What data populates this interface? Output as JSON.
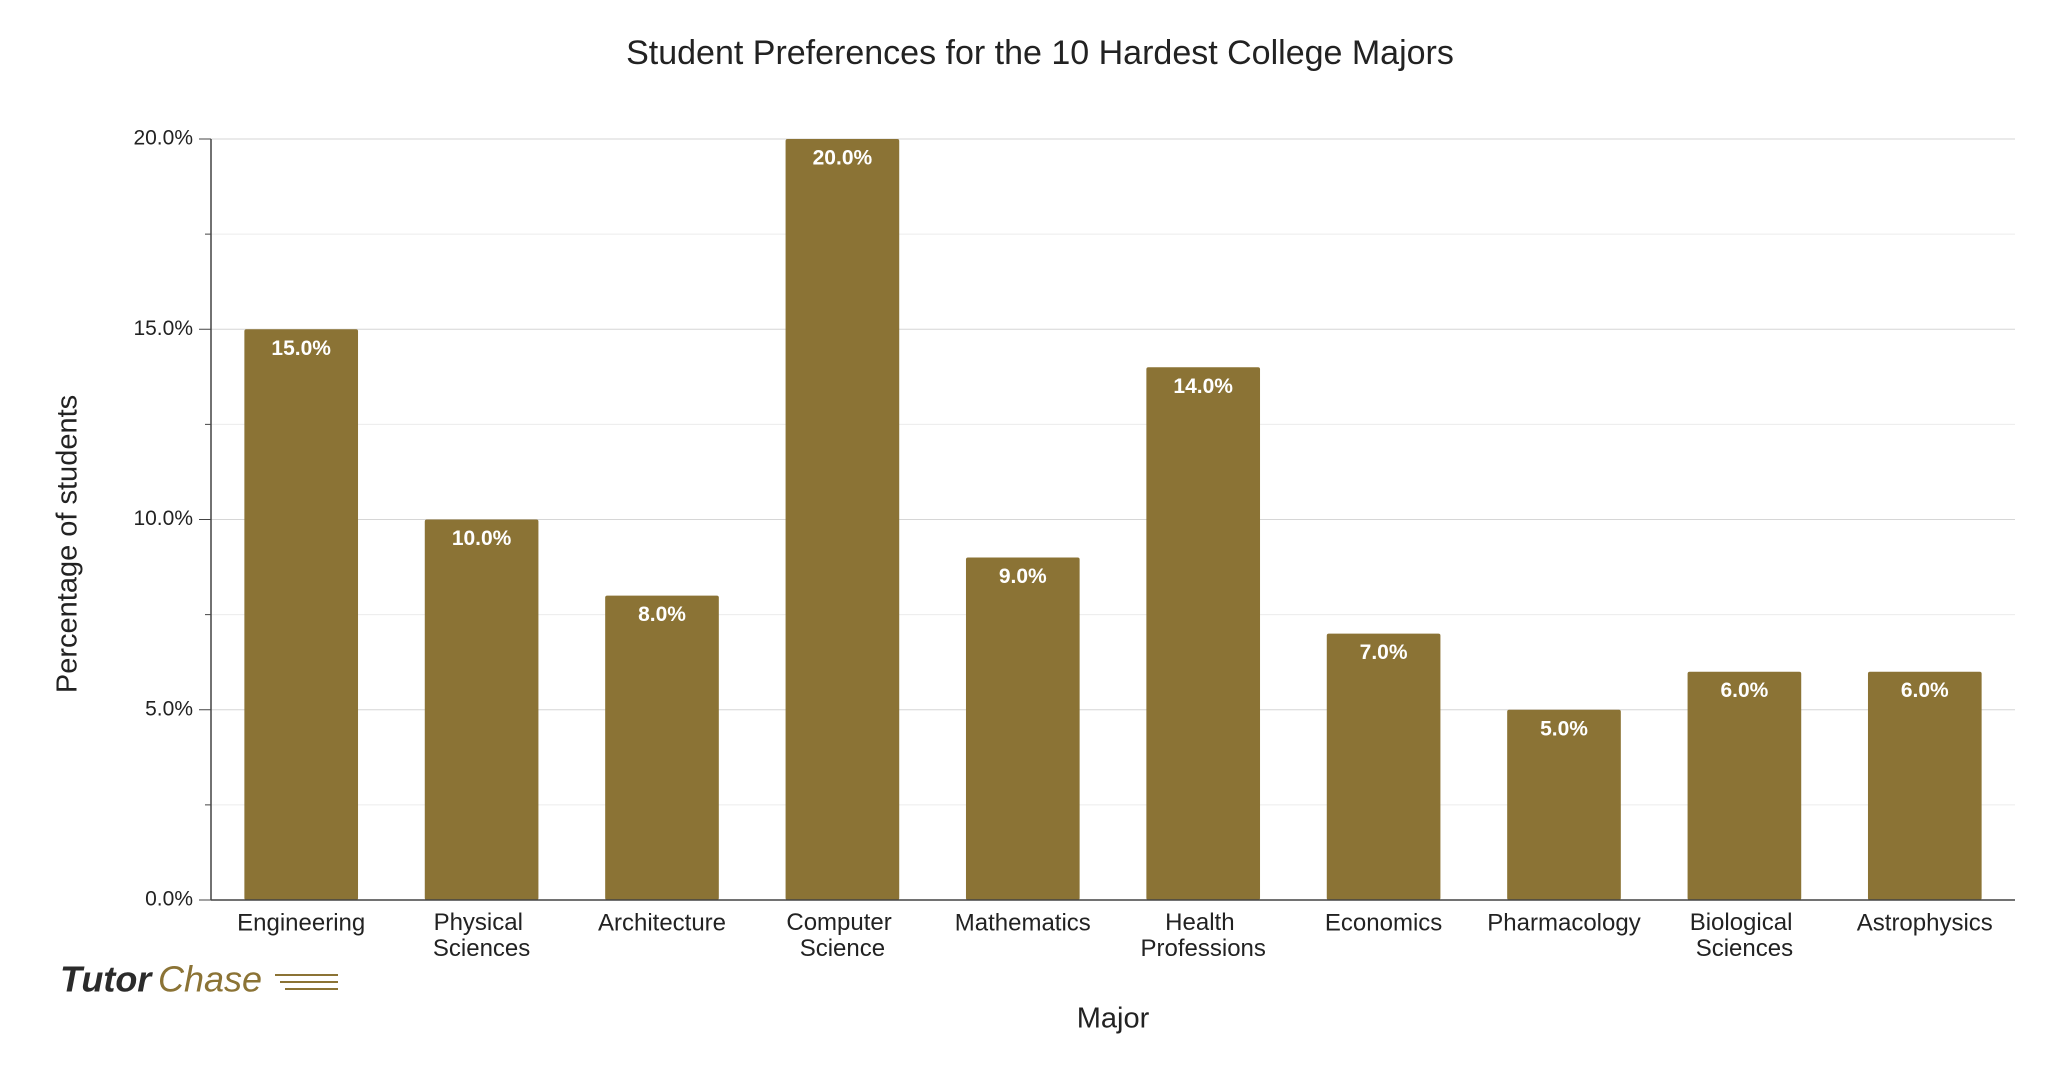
{
  "chart_data": {
    "type": "bar",
    "title": "Student Preferences for the 10 Hardest College Majors",
    "x_label": "Major",
    "y_label": "Percentage of students",
    "categories": [
      "Engineering",
      "Physical Sciences",
      "Architecture",
      "Computer Science",
      "Mathematics",
      "Health Professions",
      "Economics",
      "Pharmacology",
      "Biological Sciences",
      "Astrophysics"
    ],
    "values": [
      15,
      10,
      8,
      20,
      9,
      14,
      7,
      5,
      6,
      6
    ],
    "value_labels": [
      "15.0%",
      "10.0%",
      "8.0%",
      "20.0%",
      "9.0%",
      "14.0%",
      "7.0%",
      "5.0%",
      "6.0%",
      "6.0%"
    ],
    "color": "#8b7335",
    "ylim": [
      0,
      20
    ],
    "yticks": [
      {
        "value": 0,
        "label": "0.0%"
      },
      {
        "value": 5,
        "label": "5.0%"
      },
      {
        "value": 10,
        "label": "10.0%"
      },
      {
        "value": 15,
        "label": "15.0%"
      },
      {
        "value": 20,
        "label": "20.0%"
      }
    ],
    "minor_yticks": [
      2.5,
      7.5,
      12.5,
      17.5
    ],
    "grid": true
  },
  "brand": {
    "first": "Tutor",
    "second": "Chase"
  }
}
